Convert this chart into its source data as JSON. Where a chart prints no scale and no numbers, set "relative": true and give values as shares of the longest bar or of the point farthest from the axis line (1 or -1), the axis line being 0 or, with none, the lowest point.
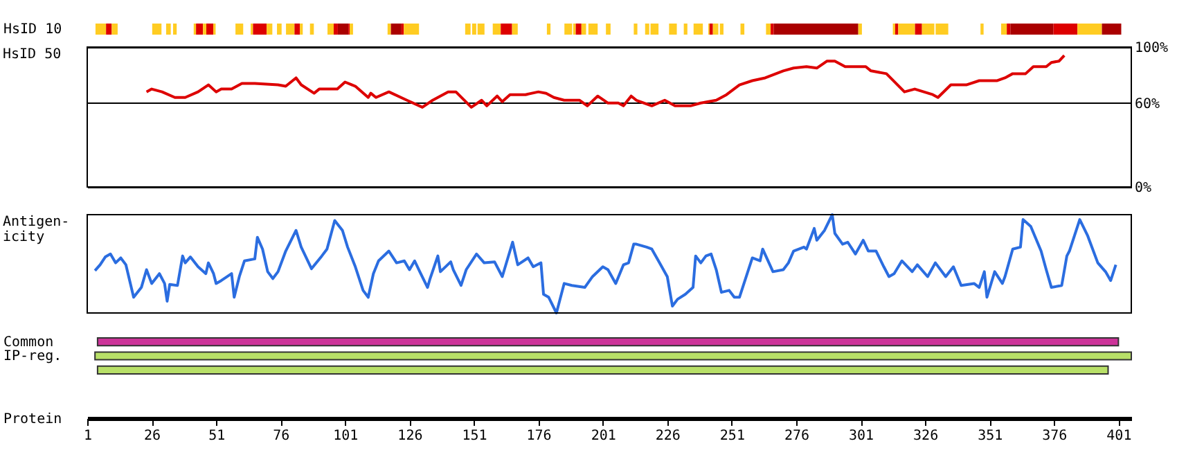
{
  "chart_data": [
    {
      "type": "bar",
      "orientation": "horizontal",
      "categories": [
        "HsID 10"
      ],
      "xlim": [
        1,
        406
      ],
      "tick_labels": "y",
      "series": [
        {
          "color": "#ffcc22",
          "values": [
            4.1
          ],
          "base": [
            4.2
          ]
        },
        {
          "color": "#dd0000",
          "values": [
            2.2
          ],
          "base": [
            8.3
          ]
        },
        {
          "color": "#ffcc22",
          "values": [
            2.3
          ],
          "base": [
            10.5
          ]
        },
        {
          "color": "#ffcc22",
          "values": [
            3.6
          ],
          "base": [
            26.2
          ]
        },
        {
          "color": "#ffcc22",
          "values": [
            1.8
          ],
          "base": [
            31.6
          ]
        },
        {
          "color": "#ffcc22",
          "values": [
            1.4
          ],
          "base": [
            34.3
          ]
        },
        {
          "color": "#ffcc22",
          "values": [
            0.9
          ],
          "base": [
            42.3
          ]
        },
        {
          "color": "#dd0000",
          "values": [
            2.7
          ],
          "base": [
            43.2
          ]
        },
        {
          "color": "#ffcc22",
          "values": [
            1.3
          ],
          "base": [
            45.9
          ]
        },
        {
          "color": "#dd0000",
          "values": [
            2.7
          ],
          "base": [
            47.2
          ]
        },
        {
          "color": "#ffcc22",
          "values": [
            0.9
          ],
          "base": [
            49.9
          ]
        },
        {
          "color": "#ffcc22",
          "values": [
            3.0
          ],
          "base": [
            58.5
          ]
        },
        {
          "color": "#ffcc22",
          "values": [
            0.9
          ],
          "base": [
            64.4
          ]
        },
        {
          "color": "#dd0000",
          "values": [
            5.3
          ],
          "base": [
            65.3
          ]
        },
        {
          "color": "#ffcc22",
          "values": [
            2.2
          ],
          "base": [
            70.6
          ]
        },
        {
          "color": "#ffcc22",
          "values": [
            1.8
          ],
          "base": [
            74.6
          ]
        },
        {
          "color": "#ffcc22",
          "values": [
            3.3
          ],
          "base": [
            78.1
          ]
        },
        {
          "color": "#dd0000",
          "values": [
            2.1
          ],
          "base": [
            81.4
          ]
        },
        {
          "color": "#ffcc22",
          "values": [
            1.1
          ],
          "base": [
            83.5
          ]
        },
        {
          "color": "#ffcc22",
          "values": [
            1.5
          ],
          "base": [
            87.4
          ]
        },
        {
          "color": "#ffcc22",
          "values": [
            2.4
          ],
          "base": [
            94.2
          ]
        },
        {
          "color": "#dd0000",
          "values": [
            1.6
          ],
          "base": [
            96.6
          ]
        },
        {
          "color": "#aa0000",
          "values": [
            4.1
          ],
          "base": [
            98.2
          ]
        },
        {
          "color": "#dd0000",
          "values": [
            0.5
          ],
          "base": [
            102.3
          ]
        },
        {
          "color": "#ffcc22",
          "values": [
            1.3
          ],
          "base": [
            102.8
          ]
        },
        {
          "color": "#ffcc22",
          "values": [
            1.3
          ],
          "base": [
            117.5
          ]
        },
        {
          "color": "#aa0000",
          "values": [
            4.1
          ],
          "base": [
            118.8
          ]
        },
        {
          "color": "#dd0000",
          "values": [
            0.9
          ],
          "base": [
            122.9
          ]
        },
        {
          "color": "#ffcc22",
          "values": [
            5.9
          ],
          "base": [
            123.8
          ]
        },
        {
          "color": "#ffcc22",
          "values": [
            2.1
          ],
          "base": [
            147.6
          ]
        },
        {
          "color": "#ffcc22",
          "values": [
            1.6
          ],
          "base": [
            150.3
          ]
        },
        {
          "color": "#ffcc22",
          "values": [
            2.7
          ],
          "base": [
            152.4
          ]
        },
        {
          "color": "#ffcc22",
          "values": [
            3.1
          ],
          "base": [
            158.3
          ]
        },
        {
          "color": "#dd0000",
          "values": [
            4.4
          ],
          "base": [
            161.4
          ]
        },
        {
          "color": "#ffcc22",
          "values": [
            2.2
          ],
          "base": [
            165.8
          ]
        },
        {
          "color": "#ffcc22",
          "values": [
            1.4
          ],
          "base": [
            179.3
          ]
        },
        {
          "color": "#ffcc22",
          "values": [
            3.0
          ],
          "base": [
            186.1
          ]
        },
        {
          "color": "#ffcc22",
          "values": [
            1.0
          ],
          "base": [
            189.5
          ]
        },
        {
          "color": "#dd0000",
          "values": [
            2.2
          ],
          "base": [
            190.5
          ]
        },
        {
          "color": "#ffcc22",
          "values": [
            1.8
          ],
          "base": [
            192.7
          ]
        },
        {
          "color": "#ffcc22",
          "values": [
            3.6
          ],
          "base": [
            195.4
          ]
        },
        {
          "color": "#ffcc22",
          "values": [
            1.8
          ],
          "base": [
            202.2
          ]
        },
        {
          "color": "#ffcc22",
          "values": [
            1.4
          ],
          "base": [
            213.0
          ]
        },
        {
          "color": "#ffcc22",
          "values": [
            1.6
          ],
          "base": [
            217.4
          ]
        },
        {
          "color": "#ffcc22",
          "values": [
            3.1
          ],
          "base": [
            219.5
          ]
        },
        {
          "color": "#ffcc22",
          "values": [
            3.0
          ],
          "base": [
            226.7
          ]
        },
        {
          "color": "#ffcc22",
          "values": [
            1.4
          ],
          "base": [
            232.4
          ]
        },
        {
          "color": "#ffcc22",
          "values": [
            3.6
          ],
          "base": [
            236.2
          ]
        },
        {
          "color": "#ffcc22",
          "values": [
            0.5
          ],
          "base": [
            241.9
          ]
        },
        {
          "color": "#dd0000",
          "values": [
            1.3
          ],
          "base": [
            242.4
          ]
        },
        {
          "color": "#ffcc22",
          "values": [
            2.1
          ],
          "base": [
            243.7
          ]
        },
        {
          "color": "#ffcc22",
          "values": [
            1.4
          ],
          "base": [
            246.4
          ]
        },
        {
          "color": "#ffcc22",
          "values": [
            1.5
          ],
          "base": [
            254.4
          ]
        },
        {
          "color": "#ffcc22",
          "values": [
            1.8
          ],
          "base": [
            264.3
          ]
        },
        {
          "color": "#dd0000",
          "values": [
            1.2
          ],
          "base": [
            266.1
          ]
        },
        {
          "color": "#aa0000",
          "values": [
            32.8
          ],
          "base": [
            267.3
          ]
        },
        {
          "color": "#ffcc22",
          "values": [
            1.4
          ],
          "base": [
            300.1
          ]
        },
        {
          "color": "#ffcc22",
          "values": [
            0.9
          ],
          "base": [
            313.5
          ]
        },
        {
          "color": "#dd0000",
          "values": [
            1.2
          ],
          "base": [
            314.4
          ]
        },
        {
          "color": "#ffcc22",
          "values": [
            6.5
          ],
          "base": [
            315.6
          ]
        },
        {
          "color": "#dd0000",
          "values": [
            2.7
          ],
          "base": [
            322.1
          ]
        },
        {
          "color": "#ffcc22",
          "values": [
            4.8
          ],
          "base": [
            324.8
          ]
        },
        {
          "color": "#ffcc22",
          "values": [
            4.9
          ],
          "base": [
            330.1
          ]
        },
        {
          "color": "#ffcc22",
          "values": [
            1.2
          ],
          "base": [
            347.5
          ]
        },
        {
          "color": "#ffcc22",
          "values": [
            2.2
          ],
          "base": [
            355.5
          ]
        },
        {
          "color": "#dd0000",
          "values": [
            1.4
          ],
          "base": [
            357.7
          ]
        },
        {
          "color": "#aa0000",
          "values": [
            16.7
          ],
          "base": [
            359.1
          ]
        },
        {
          "color": "#dd0000",
          "values": [
            9.3
          ],
          "base": [
            375.8
          ]
        },
        {
          "color": "#ffcc22",
          "values": [
            9.5
          ],
          "base": [
            385.1
          ]
        },
        {
          "color": "#aa0000",
          "values": [
            7.5
          ],
          "base": [
            394.6
          ]
        }
      ]
    },
    {
      "type": "line",
      "ylabel": "HsID 50",
      "xlim": [
        1,
        406
      ],
      "ylim": [
        0,
        100
      ],
      "yticks": [
        {
          "value": 0,
          "label": "0%"
        },
        {
          "value": 60,
          "label": "60%"
        },
        {
          "value": 100,
          "label": "100%"
        }
      ],
      "tick_labels": "y",
      "grid": "y",
      "marker": "none",
      "line_style": "solid",
      "series": [
        {
          "color": "#dd0000",
          "x": [
            24,
            26,
            30,
            35,
            39,
            44,
            48,
            51,
            53,
            57,
            61,
            66,
            75,
            78,
            82,
            84,
            89,
            91,
            98,
            101,
            105,
            110,
            111,
            113,
            118,
            125,
            131,
            135,
            141,
            144,
            150,
            154,
            156,
            160,
            162,
            165,
            171,
            176,
            179,
            182,
            186,
            192,
            195,
            199,
            203,
            207,
            209,
            212,
            214,
            220,
            225,
            229,
            235,
            239,
            245,
            249,
            254,
            259,
            264,
            271,
            275,
            280,
            284,
            288,
            291,
            295,
            303,
            305,
            311,
            318,
            322,
            329,
            331,
            336,
            342,
            347,
            354,
            357,
            360,
            365,
            368,
            373,
            375,
            378,
            380
          ],
          "values": [
            68,
            70,
            68,
            64,
            64,
            68,
            73,
            68,
            70,
            70,
            74,
            74,
            73,
            72,
            78,
            73,
            67,
            70,
            70,
            75,
            72,
            64,
            67,
            64,
            68,
            62,
            57,
            62,
            68,
            68,
            57,
            62,
            58,
            65,
            61,
            66,
            66,
            68,
            67,
            64,
            62,
            62,
            58,
            65,
            60,
            60,
            58,
            65,
            62,
            58,
            62,
            58,
            58,
            60,
            62,
            66,
            73,
            76,
            78,
            83,
            85,
            86,
            85,
            90,
            90,
            86,
            86,
            83,
            81,
            68,
            70,
            66,
            64,
            73,
            73,
            76,
            76,
            78,
            81,
            81,
            86,
            86,
            89,
            90,
            94
          ]
        }
      ]
    },
    {
      "type": "line",
      "ylabel": "Antigen-\nicity",
      "xlim": [
        1,
        406
      ],
      "relative": true,
      "tick_labels": false,
      "marker": "none",
      "line_style": "solid",
      "series": [
        {
          "color": "#2b6de0",
          "x": [
            4,
            6,
            8,
            10,
            12,
            14,
            16,
            19,
            22,
            24,
            26,
            29,
            31,
            32,
            33,
            36,
            38,
            39,
            41,
            44,
            47,
            48,
            50,
            51,
            53,
            57,
            58,
            60,
            62,
            66,
            67,
            69,
            71,
            73,
            75,
            78,
            82,
            84,
            88,
            92,
            94,
            97,
            100,
            102,
            105,
            108,
            110,
            112,
            114,
            118,
            121,
            124,
            126,
            128,
            130,
            133,
            134,
            137,
            138,
            142,
            143,
            146,
            148,
            152,
            155,
            159,
            162,
            166,
            168,
            172,
            174,
            177,
            178,
            180,
            183,
            186,
            189,
            194,
            197,
            201,
            203,
            206,
            209,
            211,
            213,
            214,
            218,
            220,
            223,
            226,
            228,
            230,
            233,
            236,
            237,
            239,
            241,
            243,
            245,
            247,
            250,
            252,
            254,
            257,
            259,
            262,
            263,
            267,
            271,
            273,
            275,
            279,
            280,
            283,
            284,
            287,
            290,
            291,
            294,
            296,
            299,
            302,
            304,
            307,
            310,
            312,
            314,
            317,
            321,
            323,
            327,
            330,
            334,
            337,
            340,
            345,
            347,
            349,
            350,
            353,
            356,
            357,
            360,
            363,
            364,
            367,
            371,
            373,
            375,
            379,
            381,
            382,
            386,
            389,
            390,
            393,
            396,
            398,
            400
          ],
          "values": [
            0.43,
            0.49,
            0.57,
            0.6,
            0.51,
            0.56,
            0.49,
            0.16,
            0.26,
            0.44,
            0.3,
            0.4,
            0.3,
            0.12,
            0.29,
            0.28,
            0.58,
            0.51,
            0.57,
            0.47,
            0.4,
            0.51,
            0.4,
            0.3,
            0.33,
            0.4,
            0.16,
            0.37,
            0.53,
            0.55,
            0.77,
            0.65,
            0.42,
            0.35,
            0.42,
            0.63,
            0.84,
            0.67,
            0.45,
            0.58,
            0.65,
            0.94,
            0.84,
            0.67,
            0.47,
            0.23,
            0.16,
            0.4,
            0.53,
            0.63,
            0.51,
            0.53,
            0.44,
            0.53,
            0.42,
            0.26,
            0.35,
            0.58,
            0.42,
            0.52,
            0.44,
            0.28,
            0.44,
            0.6,
            0.51,
            0.52,
            0.37,
            0.72,
            0.49,
            0.56,
            0.47,
            0.51,
            0.19,
            0.16,
            0.0,
            0.3,
            0.28,
            0.26,
            0.37,
            0.47,
            0.44,
            0.3,
            0.49,
            0.51,
            0.7,
            0.7,
            0.67,
            0.65,
            0.51,
            0.37,
            0.07,
            0.14,
            0.19,
            0.26,
            0.58,
            0.51,
            0.58,
            0.6,
            0.44,
            0.21,
            0.23,
            0.16,
            0.16,
            0.4,
            0.56,
            0.53,
            0.65,
            0.42,
            0.44,
            0.51,
            0.63,
            0.67,
            0.65,
            0.86,
            0.74,
            0.84,
            1.0,
            0.81,
            0.7,
            0.72,
            0.6,
            0.74,
            0.63,
            0.63,
            0.47,
            0.37,
            0.4,
            0.53,
            0.42,
            0.49,
            0.37,
            0.51,
            0.37,
            0.47,
            0.28,
            0.3,
            0.26,
            0.42,
            0.16,
            0.42,
            0.3,
            0.37,
            0.65,
            0.67,
            0.95,
            0.88,
            0.63,
            0.44,
            0.26,
            0.28,
            0.58,
            0.63,
            0.95,
            0.79,
            0.72,
            0.51,
            0.42,
            0.33,
            0.49
          ]
        }
      ]
    },
    {
      "type": "bar",
      "orientation": "horizontal",
      "categories": [
        "Common",
        "IP-reg.",
        null
      ],
      "xlabel": "Protein",
      "xlim": [
        1,
        406
      ],
      "xticks": [
        1,
        26,
        51,
        76,
        101,
        126,
        151,
        176,
        201,
        226,
        251,
        276,
        301,
        326,
        351,
        376,
        401
      ],
      "values": [
        396,
        402,
        392
      ],
      "base": [
        5,
        4,
        5
      ],
      "colors": [
        "#cc3399",
        "#b8e068",
        "#b8e068"
      ]
    }
  ]
}
